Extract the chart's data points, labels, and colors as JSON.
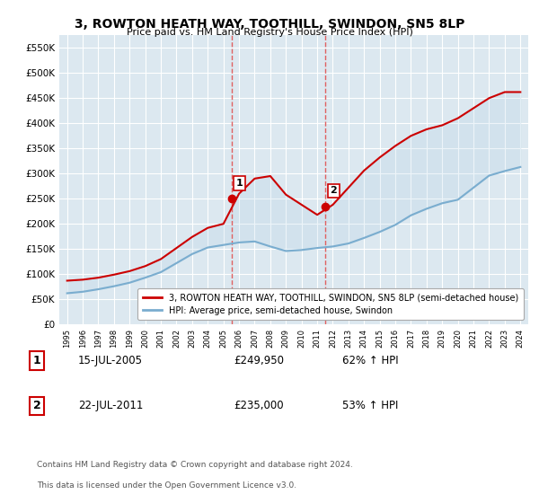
{
  "title": "3, ROWTON HEATH WAY, TOOTHILL, SWINDON, SN5 8LP",
  "subtitle": "Price paid vs. HM Land Registry's House Price Index (HPI)",
  "legend_line1": "3, ROWTON HEATH WAY, TOOTHILL, SWINDON, SN5 8LP (semi-detached house)",
  "legend_line2": "HPI: Average price, semi-detached house, Swindon",
  "footer1": "Contains HM Land Registry data © Crown copyright and database right 2024.",
  "footer2": "This data is licensed under the Open Government Licence v3.0.",
  "transaction1_date": "15-JUL-2005",
  "transaction1_price": "£249,950",
  "transaction1_hpi": "62% ↑ HPI",
  "transaction2_date": "22-JUL-2011",
  "transaction2_price": "£235,000",
  "transaction2_hpi": "53% ↑ HPI",
  "hpi_color": "#7aadcf",
  "price_color": "#cc0000",
  "dashed_line_color": "#e06060",
  "background_color": "#ffffff",
  "plot_bg_color": "#dce8f0",
  "ylim": [
    0,
    575000
  ],
  "yticks": [
    0,
    50000,
    100000,
    150000,
    200000,
    250000,
    300000,
    350000,
    400000,
    450000,
    500000,
    550000
  ],
  "years": [
    1995,
    1996,
    1997,
    1998,
    1999,
    2000,
    2001,
    2002,
    2003,
    2004,
    2005,
    2006,
    2007,
    2008,
    2009,
    2010,
    2011,
    2012,
    2013,
    2014,
    2015,
    2016,
    2017,
    2018,
    2019,
    2020,
    2021,
    2022,
    2023,
    2024
  ],
  "hpi_values": [
    62000,
    65000,
    70000,
    76000,
    83000,
    93000,
    104000,
    122000,
    140000,
    153000,
    158000,
    163000,
    165000,
    155000,
    146000,
    148000,
    152000,
    155000,
    161000,
    172000,
    184000,
    198000,
    217000,
    230000,
    241000,
    248000,
    272000,
    296000,
    305000,
    313000
  ],
  "price_values": [
    87000,
    89000,
    93000,
    99000,
    106000,
    116000,
    130000,
    152000,
    174000,
    192000,
    200000,
    260000,
    290000,
    295000,
    258000,
    238000,
    218000,
    238000,
    272000,
    306000,
    332000,
    355000,
    375000,
    388000,
    396000,
    410000,
    430000,
    450000,
    462000,
    462000
  ],
  "transaction1_x": 2005.54,
  "transaction1_y": 249950,
  "transaction2_x": 2011.54,
  "transaction2_y": 235000,
  "vline1_x": 2005.54,
  "vline2_x": 2011.54,
  "xlim_left": 1994.5,
  "xlim_right": 2024.5
}
